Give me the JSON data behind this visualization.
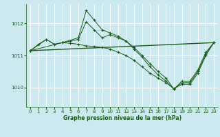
{
  "background_color": "#cce9f0",
  "grid_color": "#ffffff",
  "line_color": "#1a5c1a",
  "title": "Graphe pression niveau de la mer (hPa)",
  "xlim": [
    -0.5,
    23.5
  ],
  "ylim": [
    1009.4,
    1012.6
  ],
  "yticks": [
    1010,
    1011,
    1012
  ],
  "xticks": [
    0,
    1,
    2,
    3,
    4,
    5,
    6,
    7,
    8,
    9,
    10,
    11,
    12,
    13,
    14,
    15,
    16,
    17,
    18,
    19,
    20,
    21,
    22,
    23
  ],
  "series_zigzag": {
    "x": [
      0,
      1,
      2,
      3,
      4,
      5,
      6,
      7,
      8,
      9,
      10,
      11,
      12,
      13,
      14,
      15,
      16,
      17,
      18,
      19,
      20,
      21,
      22,
      23
    ],
    "y": [
      1011.15,
      1011.35,
      1011.5,
      1011.35,
      1011.4,
      1011.45,
      1011.5,
      1012.05,
      1011.8,
      1011.55,
      1011.65,
      1011.55,
      1011.45,
      1011.25,
      1011.0,
      1010.75,
      1010.5,
      1010.3,
      1009.95,
      1010.2,
      1010.2,
      1010.55,
      1011.1,
      1011.4
    ]
  },
  "series_flat": {
    "x": [
      0,
      23
    ],
    "y": [
      1011.15,
      1011.4
    ]
  },
  "series_high_peak": {
    "x": [
      0,
      2,
      3,
      4,
      6,
      7,
      8,
      9,
      10,
      11,
      12,
      13,
      14,
      15,
      16,
      17,
      18,
      19,
      20,
      21,
      22,
      23
    ],
    "y": [
      1011.15,
      1011.5,
      1011.35,
      1011.4,
      1011.55,
      1012.4,
      1012.1,
      1011.8,
      1011.7,
      1011.6,
      1011.45,
      1011.2,
      1010.95,
      1010.65,
      1010.4,
      1010.2,
      1009.95,
      1010.15,
      1010.15,
      1010.5,
      1011.05,
      1011.4
    ]
  },
  "series_decline": {
    "x": [
      0,
      4,
      5,
      6,
      7,
      8,
      9,
      10,
      11,
      12,
      13,
      14,
      15,
      16,
      17,
      18,
      19,
      20,
      21,
      22,
      23
    ],
    "y": [
      1011.15,
      1011.4,
      1011.38,
      1011.35,
      1011.3,
      1011.28,
      1011.25,
      1011.2,
      1011.1,
      1011.0,
      1010.85,
      1010.65,
      1010.45,
      1010.3,
      1010.15,
      1009.97,
      1010.1,
      1010.1,
      1010.45,
      1011.0,
      1011.4
    ]
  }
}
